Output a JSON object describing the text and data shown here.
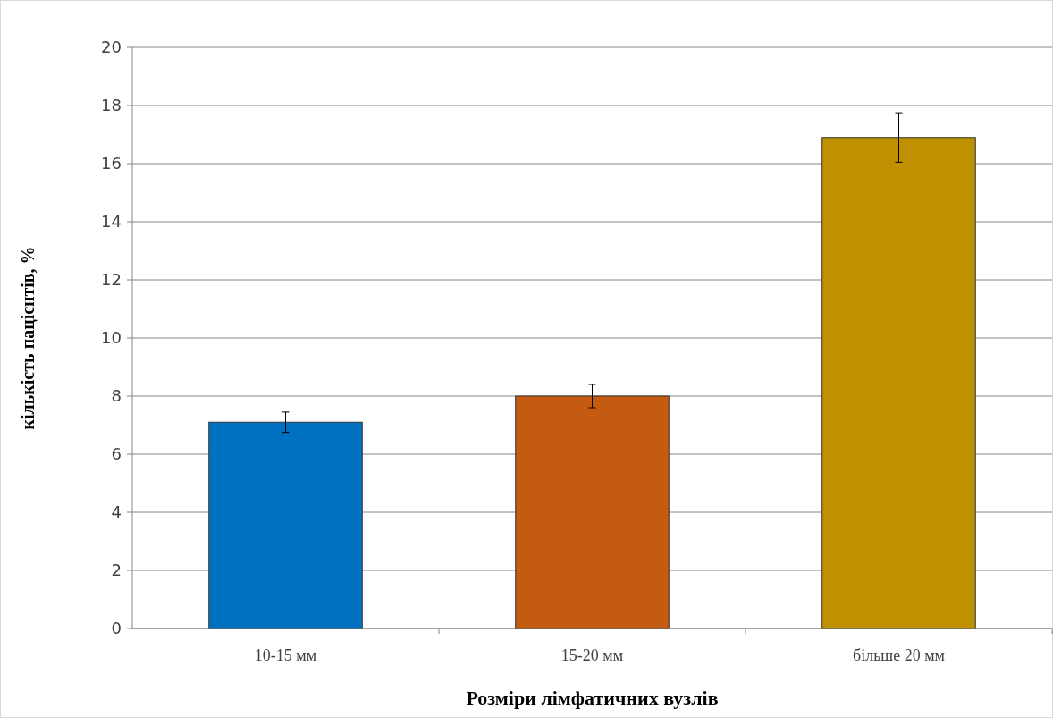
{
  "chart_data": {
    "type": "bar",
    "xlabel": "Розміри лімфатичних вузлів",
    "ylabel": "кількість пацієнтів, %",
    "categories": [
      "10-15 мм",
      "15-20 мм",
      "більше 20 мм"
    ],
    "values": [
      7.1,
      8.0,
      16.9
    ],
    "colors": [
      "#0070c0",
      "#c55a11",
      "#bf9000"
    ],
    "errors": [
      0.35,
      0.4,
      0.85
    ],
    "ylim": [
      0,
      20
    ],
    "yticks": [
      0,
      2,
      4,
      6,
      8,
      10,
      12,
      14,
      16,
      18,
      20
    ],
    "grid": "y"
  }
}
